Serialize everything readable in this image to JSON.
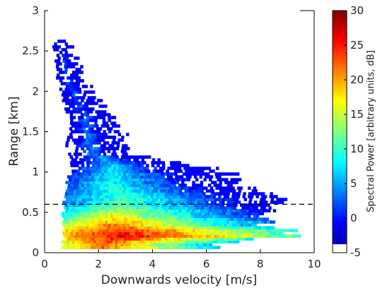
{
  "chart_data": {
    "type": "heatmap",
    "title": "",
    "xlabel": "Downwards velocity [m/s]",
    "ylabel": "Range [km]",
    "xlim": [
      0,
      10
    ],
    "ylim": [
      0,
      3
    ],
    "xticks": [
      "0",
      "2",
      "4",
      "6",
      "8",
      "10"
    ],
    "yticks": [
      "0",
      "0.5",
      "1",
      "1.5",
      "2",
      "2.5",
      "3"
    ],
    "reference_line": {
      "y": 0.6,
      "style": "dashed",
      "color": "#000000"
    },
    "colorbar": {
      "label": "Spectral Power [arbitrary units, dB]",
      "range": [
        -5,
        30
      ],
      "ticks": [
        "-5",
        "0",
        "5",
        "10",
        "15",
        "20",
        "25",
        "30"
      ],
      "colormap": "jet",
      "below_range_color": "#ffffff"
    },
    "background_color": "#ffffff",
    "profile": {
      "description_units": "range [km], velocity extent [m/s], peak power [dB]",
      "rows": [
        {
          "range": 2.62,
          "v_min": 0.3,
          "v_max": 0.9,
          "peak_dB": 2
        },
        {
          "range": 2.4,
          "v_min": 0.4,
          "v_max": 1.1,
          "peak_dB": 3
        },
        {
          "range": 2.2,
          "v_min": 0.4,
          "v_max": 1.3,
          "peak_dB": 3
        },
        {
          "range": 2.0,
          "v_min": 0.6,
          "v_max": 1.6,
          "peak_dB": 4
        },
        {
          "range": 1.8,
          "v_min": 0.8,
          "v_max": 2.2,
          "peak_dB": 4
        },
        {
          "range": 1.6,
          "v_min": 0.9,
          "v_max": 2.5,
          "peak_dB": 5
        },
        {
          "range": 1.4,
          "v_min": 0.8,
          "v_max": 3.0,
          "peak_dB": 5
        },
        {
          "range": 1.2,
          "v_min": 0.9,
          "v_max": 3.1,
          "peak_dB": 6
        },
        {
          "range": 1.0,
          "v_min": 1.0,
          "v_max": 6.6,
          "peak_dB": 9
        },
        {
          "range": 0.8,
          "v_min": 0.8,
          "v_max": 7.6,
          "peak_dB": 11
        },
        {
          "range": 0.6,
          "v_min": 0.7,
          "v_max": 8.7,
          "peak_dB": 13
        },
        {
          "range": 0.4,
          "v_min": 0.7,
          "v_max": 7.8,
          "peak_dB": 20
        },
        {
          "range": 0.2,
          "v_min": 0.7,
          "v_max": 9.3,
          "peak_dB": 29
        },
        {
          "range": 0.1,
          "v_min": 0.7,
          "v_max": 6.0,
          "peak_dB": 24
        }
      ]
    }
  }
}
